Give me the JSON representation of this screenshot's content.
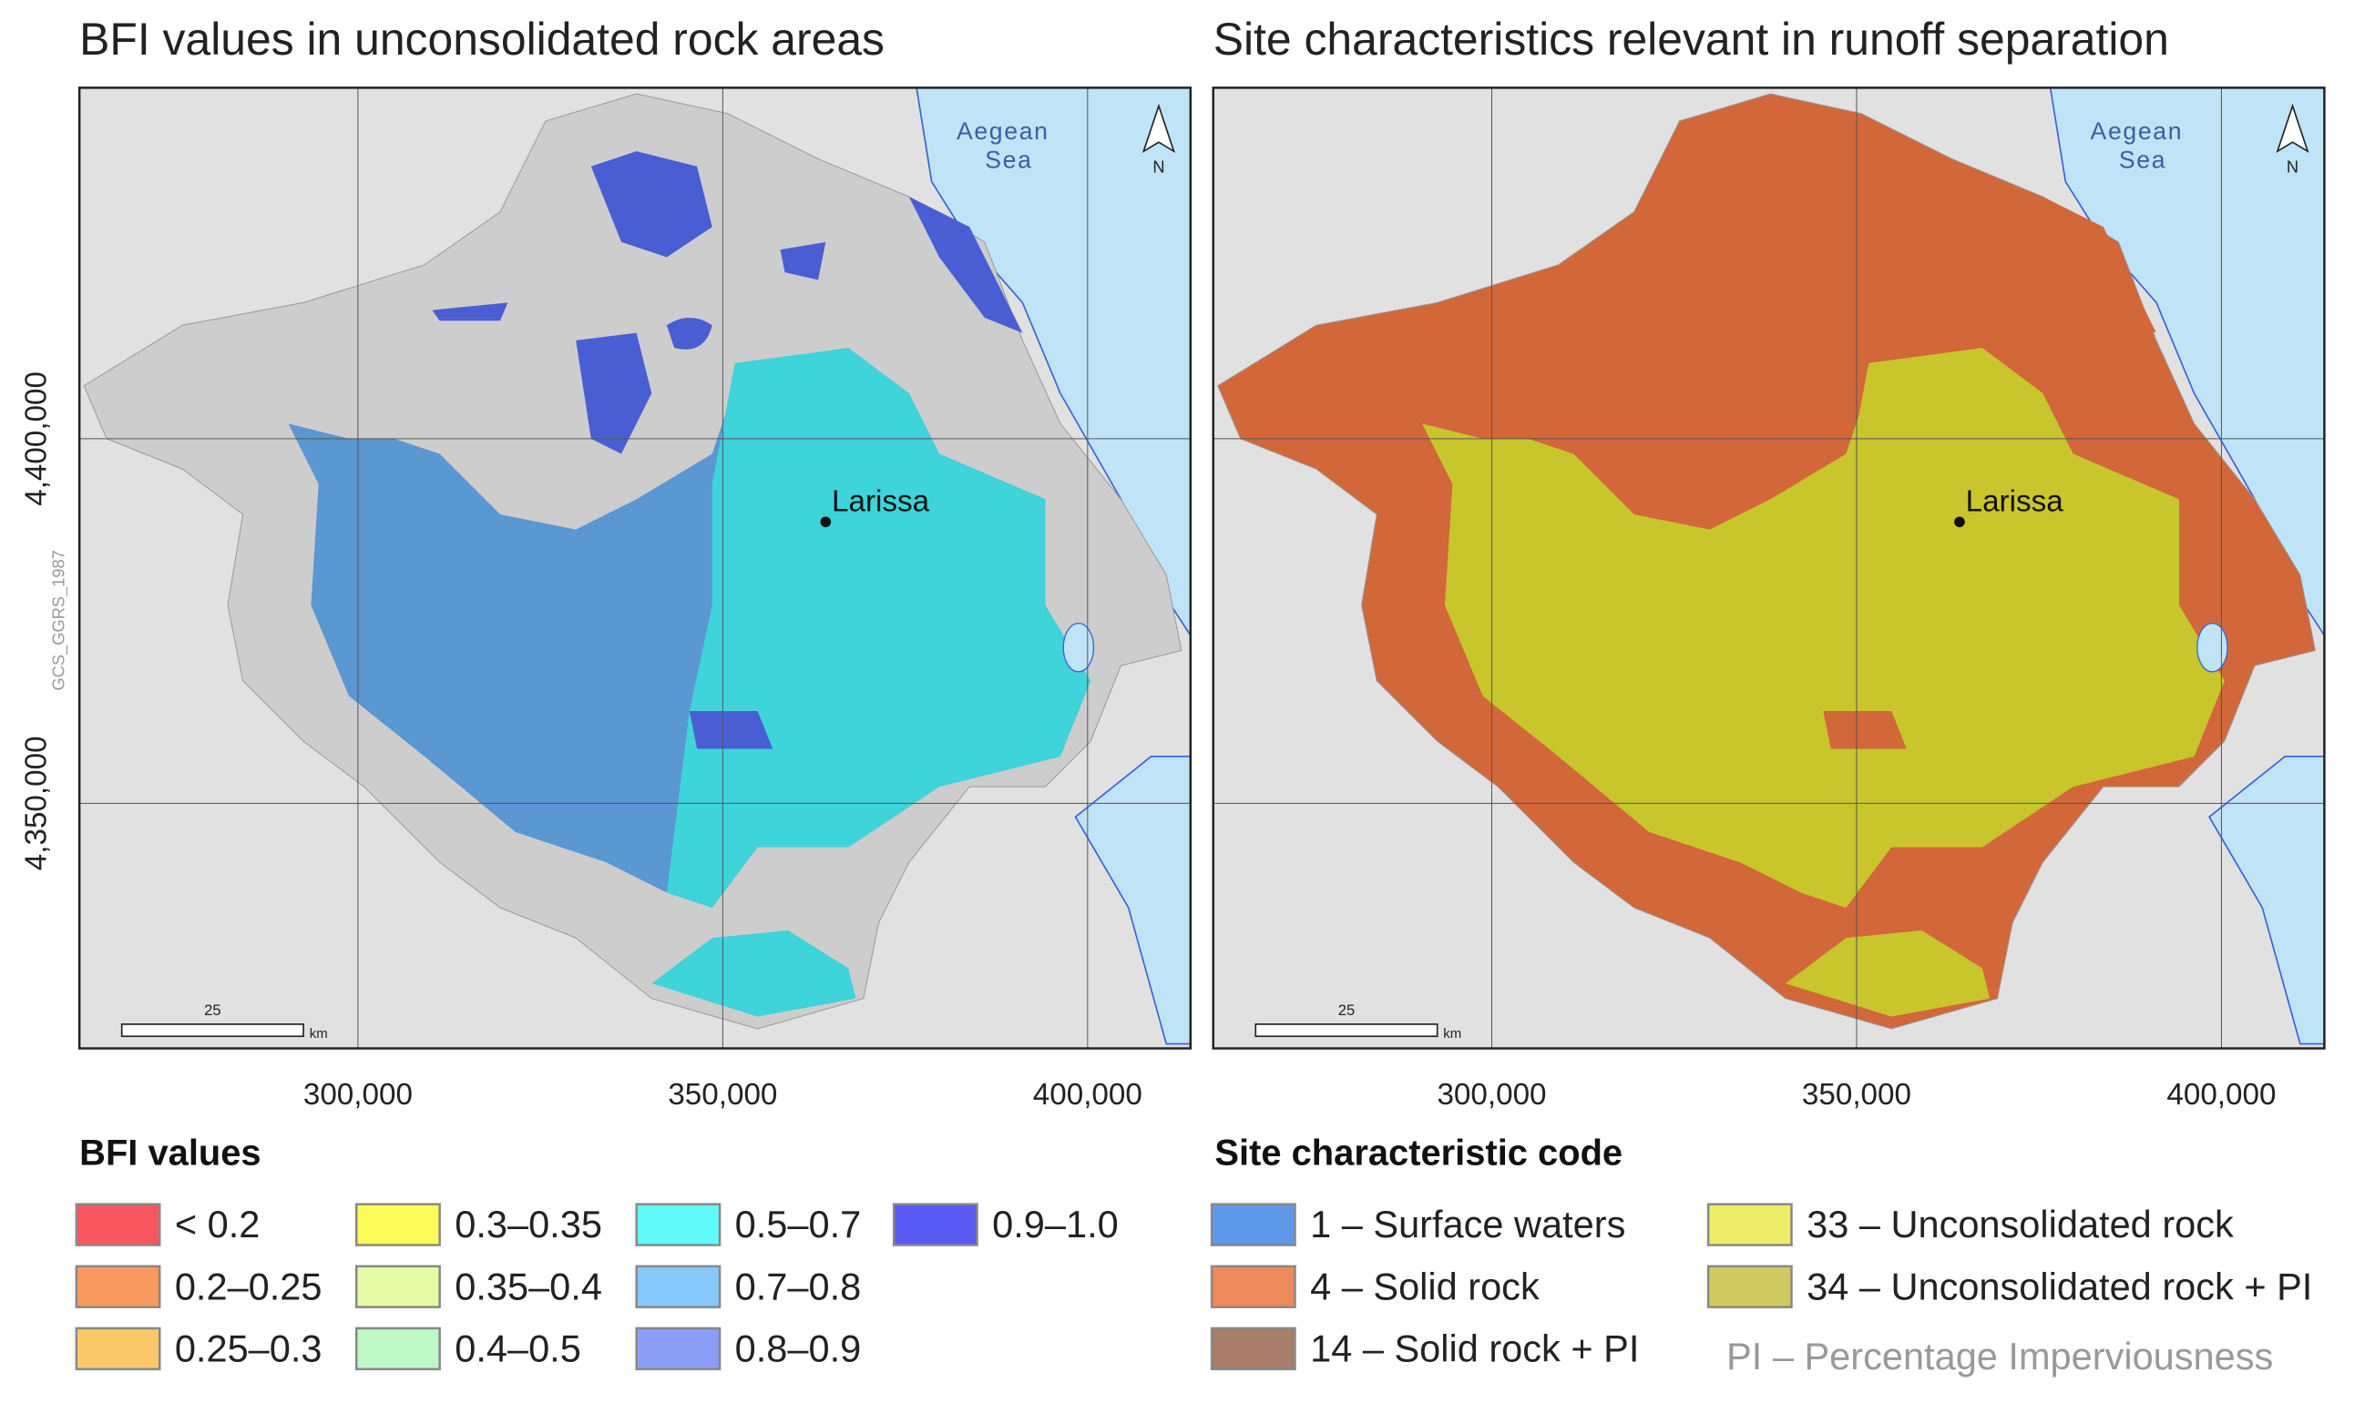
{
  "panels": [
    {
      "title": "BFI values in unconsolidated rock areas",
      "sea_label": [
        "Aegean",
        "Sea"
      ],
      "north": "N",
      "city": "Larissa",
      "scale_bar": {
        "value": "25",
        "unit": "km"
      },
      "x_ticks": [
        "300,000",
        "350,000",
        "400,000"
      ],
      "y_ticks": [
        "4,400,000",
        "4,350,000"
      ],
      "crs": "GCS_GGRS_1987",
      "colors": {
        "region": "#cdcdcd",
        "lowland": "#5b97d1",
        "east": "#3fd3da",
        "patch": "#4a5ed3"
      }
    },
    {
      "title": "Site characteristics relevant in runoff separation",
      "sea_label": [
        "Aegean",
        "Sea"
      ],
      "north": "N",
      "city": "Larissa",
      "scale_bar": {
        "value": "25",
        "unit": "km"
      },
      "x_ticks": [
        "300,000",
        "350,000",
        "400,000"
      ],
      "colors": {
        "region": "#d2673a",
        "lowland": "#c9c52c",
        "east": "#c9c52c",
        "patch": "#d2673a"
      }
    }
  ],
  "legends": [
    {
      "title": "BFI values",
      "items": [
        {
          "label": "< 0.2",
          "color": "#f8575f"
        },
        {
          "label": "0.2–0.25",
          "color": "#f89a5e"
        },
        {
          "label": "0.25–0.3",
          "color": "#fbc86a"
        },
        {
          "label": "0.3–0.35",
          "color": "#fbfb5a"
        },
        {
          "label": "0.35–0.4",
          "color": "#e6fba5"
        },
        {
          "label": "0.4–0.5",
          "color": "#bdf8c6"
        },
        {
          "label": "0.5–0.7",
          "color": "#62fafa"
        },
        {
          "label": "0.7–0.8",
          "color": "#86c8f8"
        },
        {
          "label": "0.8–0.9",
          "color": "#8a9ef8"
        },
        {
          "label": "0.9–1.0",
          "color": "#5a5af5"
        }
      ]
    },
    {
      "title": "Site characteristic code",
      "items": [
        {
          "label": "1 – Surface waters",
          "color": "#5f98e8"
        },
        {
          "label": "4 – Solid rock",
          "color": "#ee8a5c"
        },
        {
          "label": "14 – Solid rock + PI",
          "color": "#a87d68"
        },
        {
          "label": "33 – Unconsolidated rock",
          "color": "#eded6a"
        },
        {
          "label": "34 – Unconsolidated rock + PI",
          "color": "#cfcb62"
        }
      ],
      "note": "PI – Percentage Imperviousness"
    }
  ]
}
